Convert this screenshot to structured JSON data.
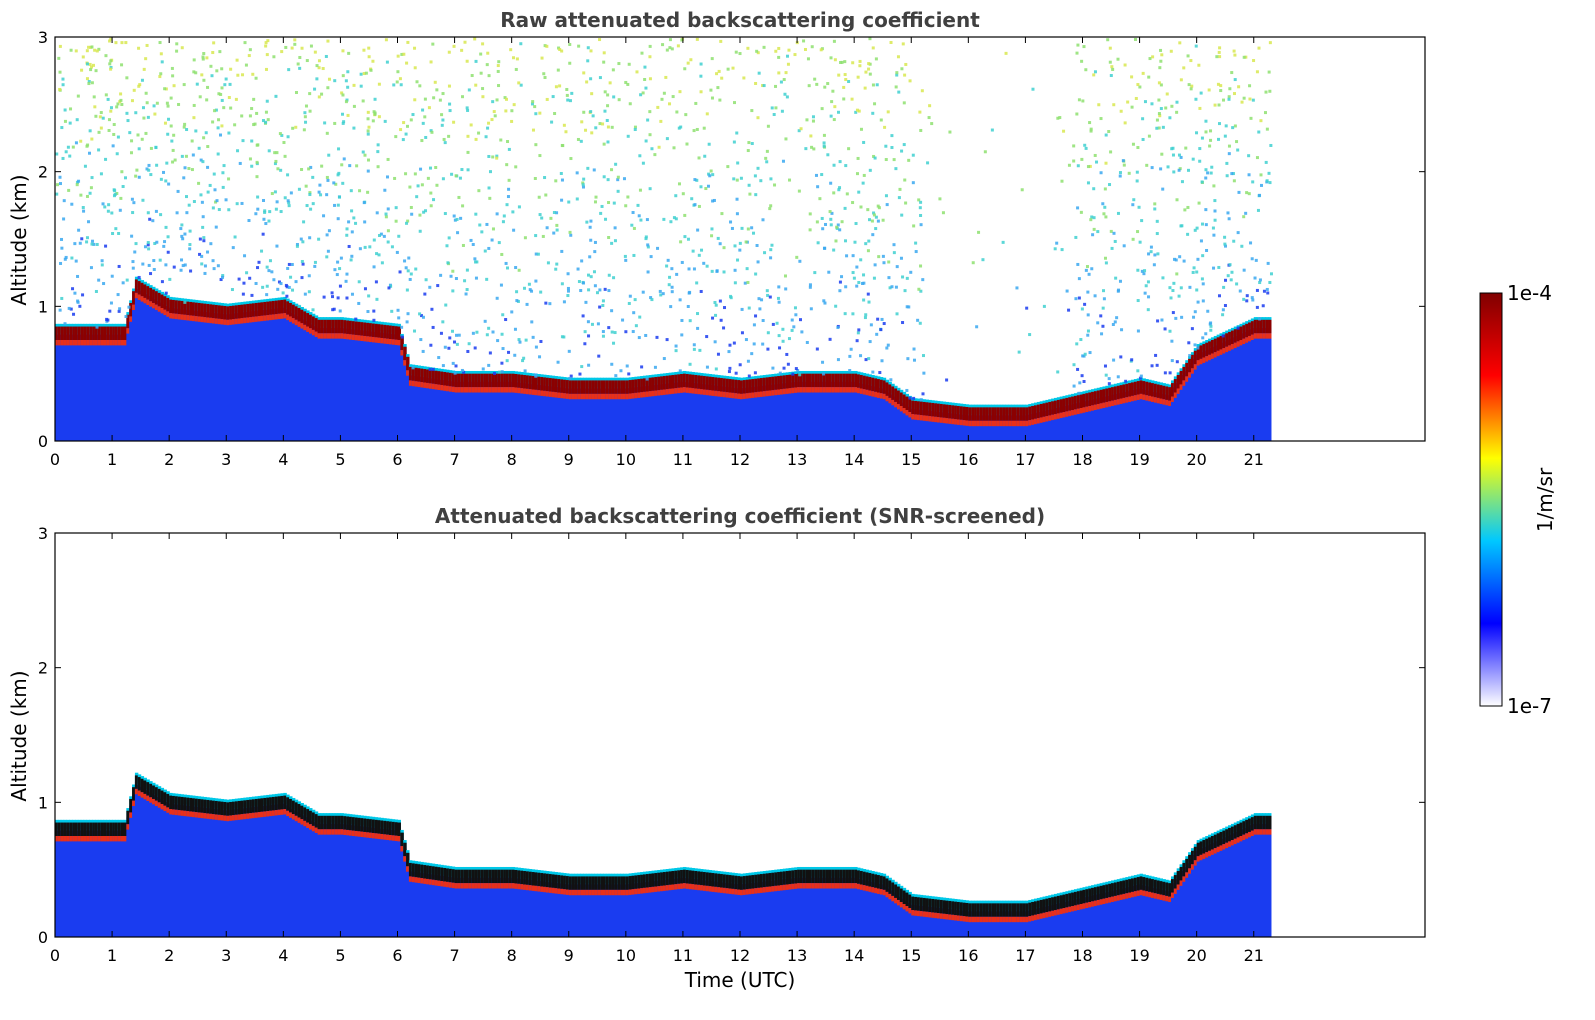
{
  "chart_data": [
    {
      "type": "heatmap",
      "title": "Raw attenuated backscattering coefficient",
      "xlabel": "",
      "ylabel": "Altitude (km)",
      "xlim": [
        0,
        24
      ],
      "ylim": [
        0,
        3
      ],
      "xticks": [
        0,
        1,
        2,
        3,
        4,
        5,
        6,
        7,
        8,
        9,
        10,
        11,
        12,
        13,
        14,
        15,
        16,
        17,
        18,
        19,
        20,
        21
      ],
      "yticks": [
        0,
        1,
        2,
        3
      ],
      "data_end_time": 21.3,
      "noise": true,
      "layer_top_km": [
        [
          0,
          0.85
        ],
        [
          1.2,
          0.85
        ],
        [
          1.4,
          1.2
        ],
        [
          2,
          1.05
        ],
        [
          3,
          1.0
        ],
        [
          4,
          1.05
        ],
        [
          4.6,
          0.9
        ],
        [
          5,
          0.9
        ],
        [
          6,
          0.85
        ],
        [
          6.2,
          0.55
        ],
        [
          7,
          0.5
        ],
        [
          8,
          0.5
        ],
        [
          9,
          0.45
        ],
        [
          10,
          0.45
        ],
        [
          11,
          0.5
        ],
        [
          12,
          0.45
        ],
        [
          13,
          0.5
        ],
        [
          14,
          0.5
        ],
        [
          14.5,
          0.45
        ],
        [
          15,
          0.3
        ],
        [
          16,
          0.25
        ],
        [
          17,
          0.25
        ],
        [
          18,
          0.35
        ],
        [
          19,
          0.45
        ],
        [
          19.5,
          0.4
        ],
        [
          20,
          0.7
        ],
        [
          20.5,
          0.8
        ],
        [
          21,
          0.9
        ],
        [
          21.3,
          0.9
        ]
      ]
    },
    {
      "type": "heatmap",
      "title": "Attenuated backscattering coefficient (SNR-screened)",
      "xlabel": "Time (UTC)",
      "ylabel": "Altitude (km)",
      "xlim": [
        0,
        24
      ],
      "ylim": [
        0,
        3
      ],
      "xticks": [
        0,
        1,
        2,
        3,
        4,
        5,
        6,
        7,
        8,
        9,
        10,
        11,
        12,
        13,
        14,
        15,
        16,
        17,
        18,
        19,
        20,
        21
      ],
      "yticks": [
        0,
        1,
        2,
        3
      ],
      "data_end_time": 21.3,
      "noise": false,
      "layer_top_km": [
        [
          0,
          0.85
        ],
        [
          1.2,
          0.85
        ],
        [
          1.4,
          1.2
        ],
        [
          2,
          1.05
        ],
        [
          3,
          1.0
        ],
        [
          4,
          1.05
        ],
        [
          4.6,
          0.9
        ],
        [
          5,
          0.9
        ],
        [
          6,
          0.85
        ],
        [
          6.2,
          0.55
        ],
        [
          7,
          0.5
        ],
        [
          8,
          0.5
        ],
        [
          9,
          0.45
        ],
        [
          10,
          0.45
        ],
        [
          11,
          0.5
        ],
        [
          12,
          0.45
        ],
        [
          13,
          0.5
        ],
        [
          14,
          0.5
        ],
        [
          14.5,
          0.45
        ],
        [
          15,
          0.3
        ],
        [
          16,
          0.25
        ],
        [
          17,
          0.25
        ],
        [
          18,
          0.35
        ],
        [
          19,
          0.45
        ],
        [
          19.5,
          0.4
        ],
        [
          20,
          0.7
        ],
        [
          20.5,
          0.8
        ],
        [
          21,
          0.9
        ],
        [
          21.3,
          0.9
        ]
      ]
    }
  ],
  "colorbar": {
    "label": "1/m/sr",
    "max_label": "1e-4",
    "min_label": "1e-7",
    "colormap": "jet",
    "colors": [
      "#ffffff",
      "#0000ff",
      "#00c8ff",
      "#ffff00",
      "#ff0000",
      "#800000"
    ]
  }
}
